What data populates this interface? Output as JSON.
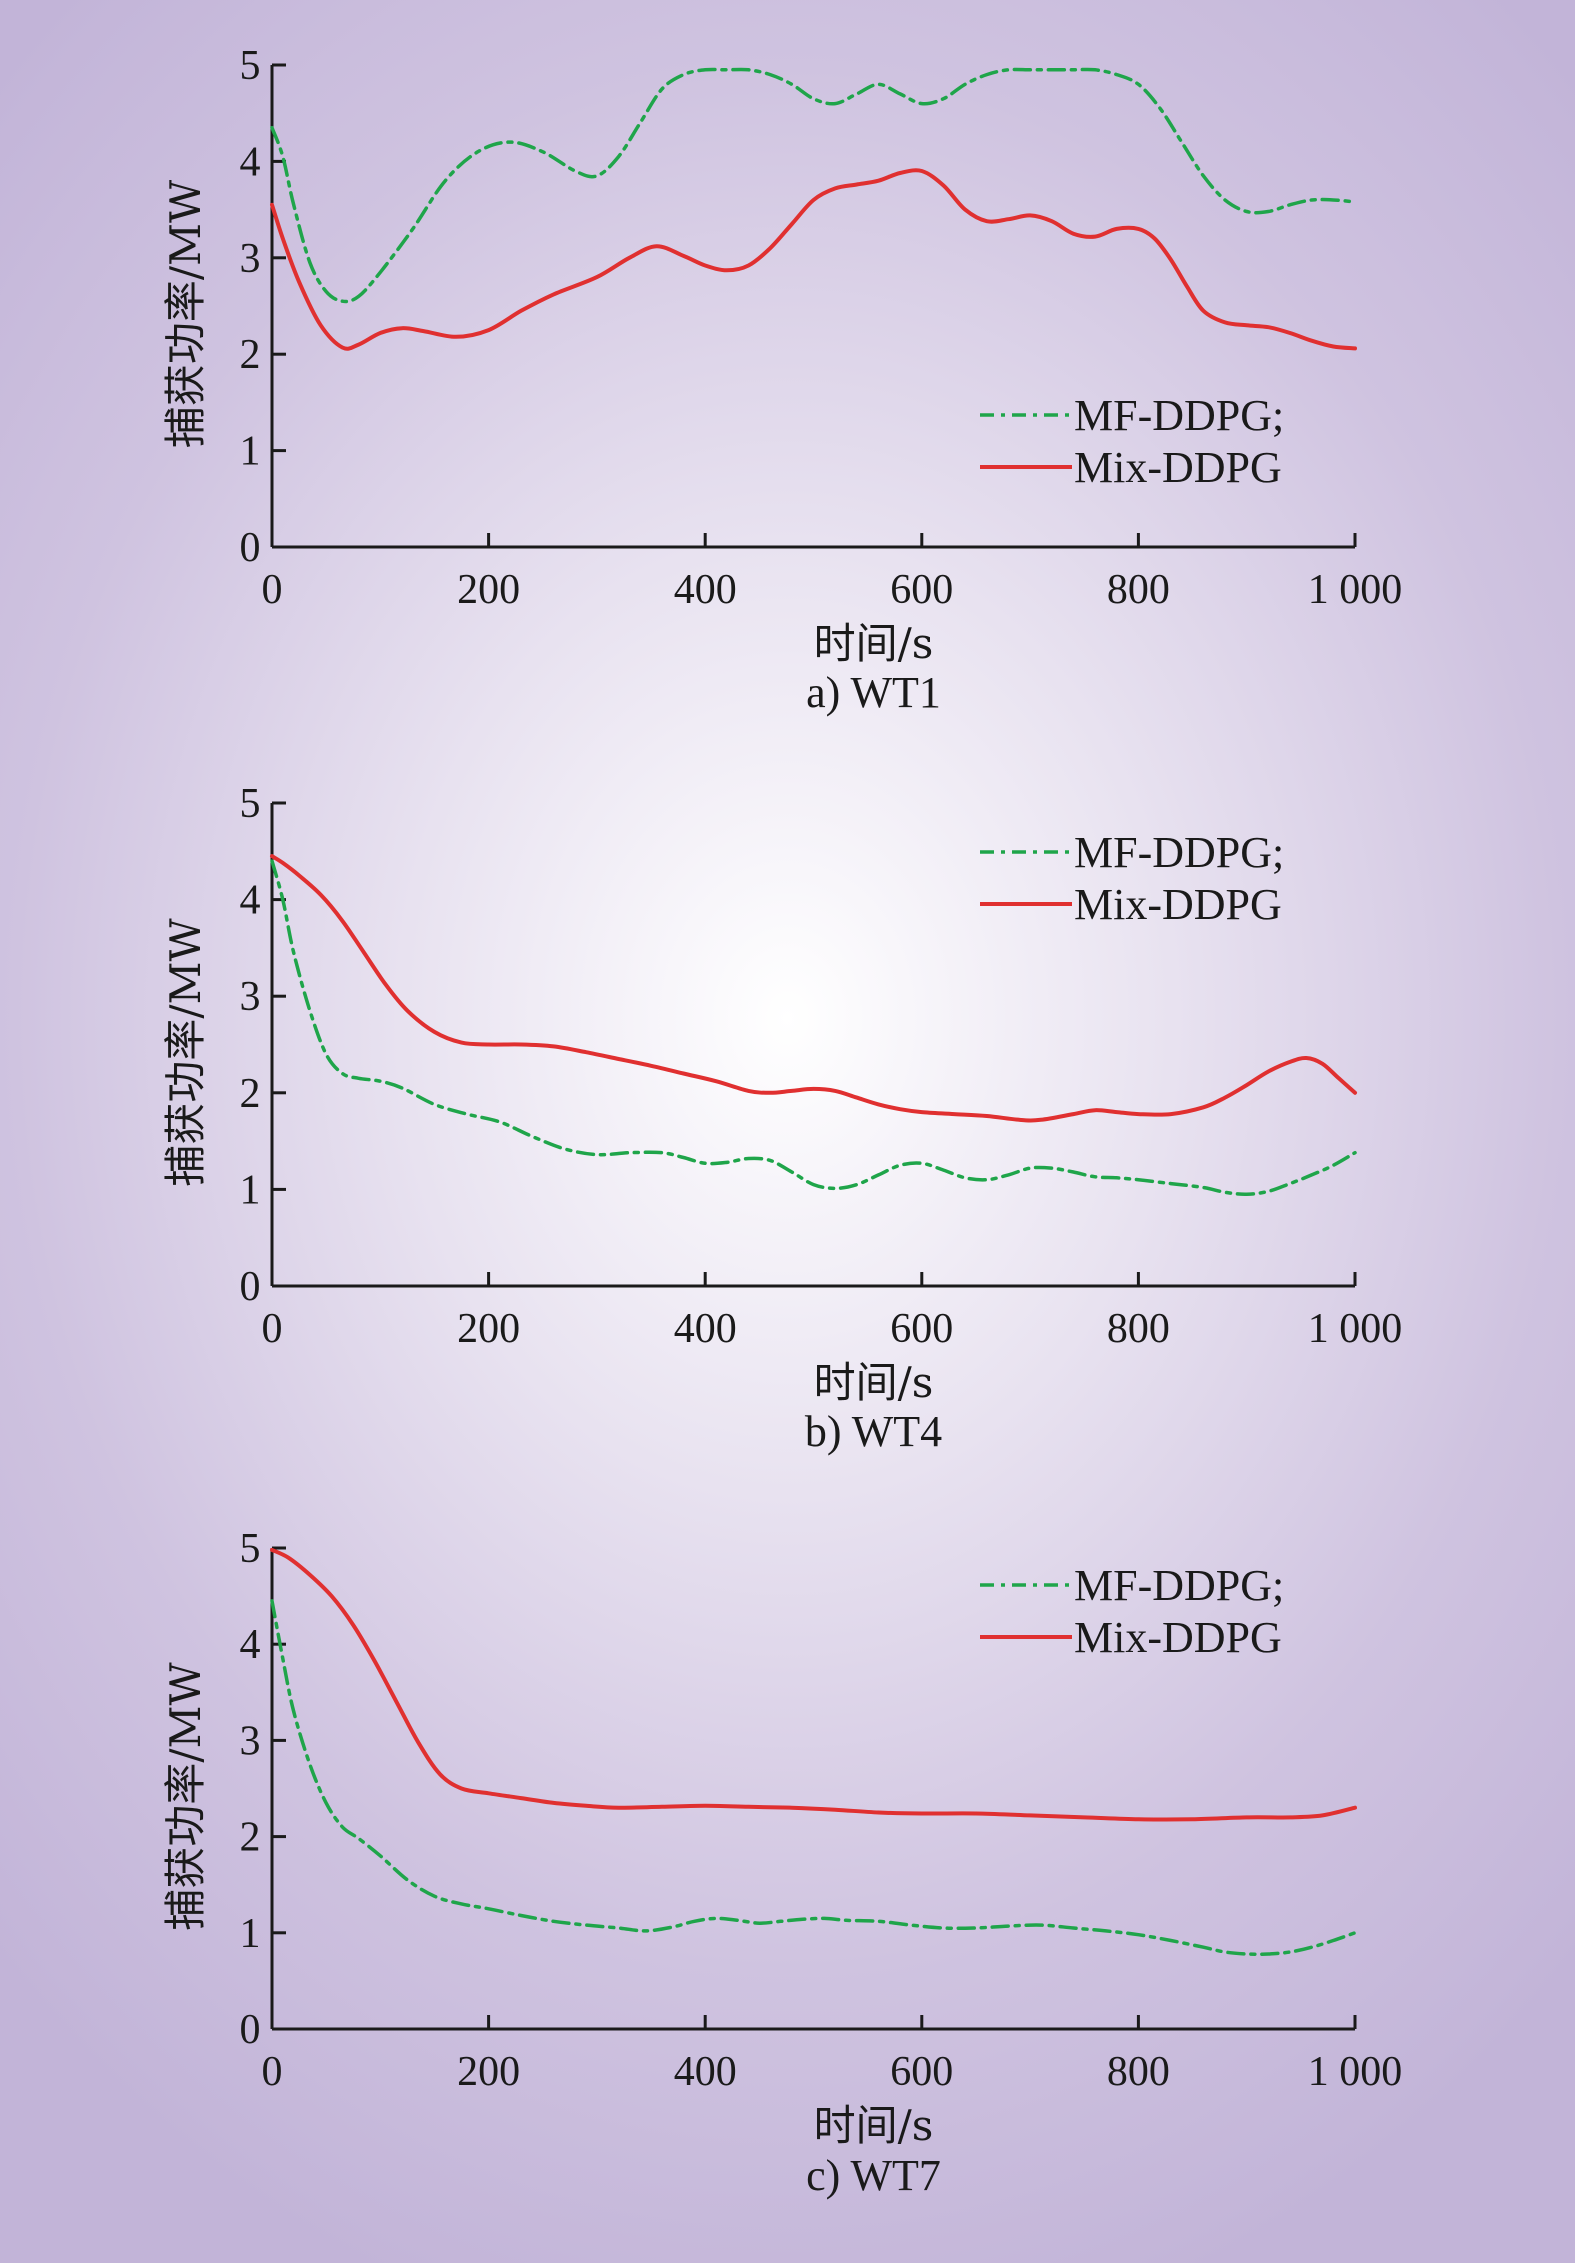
{
  "chart_data": [
    {
      "type": "line",
      "caption": "a) WT1",
      "xlabel": "时间/s",
      "ylabel": "捕获功率/MW",
      "xlim": [
        0,
        1000
      ],
      "ylim": [
        0,
        5
      ],
      "xticks": [
        0,
        200,
        400,
        600,
        800,
        1000
      ],
      "xtick_labels": [
        "0",
        "200",
        "400",
        "600",
        "800",
        "1 000"
      ],
      "yticks": [
        0,
        1,
        2,
        3,
        4,
        5
      ],
      "ytick_labels": [
        "0",
        "1",
        "2",
        "3",
        "4",
        "5"
      ],
      "legend_position": "right-middle",
      "series": [
        {
          "name": "MF-DDPG;",
          "color": "#1fa54a",
          "dash": "dashdot",
          "x": [
            0,
            10,
            20,
            35,
            50,
            65,
            80,
            100,
            130,
            160,
            190,
            220,
            250,
            280,
            300,
            320,
            340,
            360,
            380,
            400,
            420,
            440,
            460,
            480,
            500,
            520,
            540,
            560,
            580,
            600,
            620,
            640,
            660,
            680,
            700,
            720,
            740,
            760,
            780,
            800,
            820,
            840,
            860,
            880,
            900,
            920,
            940,
            960,
            980,
            1000
          ],
          "y": [
            4.35,
            4.05,
            3.55,
            2.95,
            2.65,
            2.55,
            2.6,
            2.85,
            3.3,
            3.8,
            4.1,
            4.2,
            4.1,
            3.9,
            3.85,
            4.05,
            4.4,
            4.75,
            4.9,
            4.95,
            4.95,
            4.95,
            4.9,
            4.8,
            4.65,
            4.6,
            4.7,
            4.8,
            4.7,
            4.6,
            4.65,
            4.8,
            4.9,
            4.95,
            4.95,
            4.95,
            4.95,
            4.95,
            4.9,
            4.8,
            4.55,
            4.2,
            3.85,
            3.6,
            3.48,
            3.48,
            3.55,
            3.6,
            3.6,
            3.58
          ]
        },
        {
          "name": "Mix-DDPG",
          "color": "#e03030",
          "dash": "solid",
          "x": [
            0,
            10,
            25,
            45,
            65,
            80,
            100,
            120,
            140,
            170,
            200,
            230,
            260,
            300,
            330,
            355,
            380,
            400,
            420,
            440,
            460,
            480,
            500,
            520,
            540,
            560,
            580,
            600,
            620,
            640,
            660,
            680,
            700,
            720,
            740,
            760,
            780,
            800,
            815,
            830,
            845,
            860,
            880,
            900,
            920,
            940,
            960,
            980,
            1000
          ],
          "y": [
            3.55,
            3.2,
            2.75,
            2.3,
            2.07,
            2.1,
            2.22,
            2.27,
            2.24,
            2.18,
            2.25,
            2.45,
            2.62,
            2.8,
            3.0,
            3.12,
            3.02,
            2.92,
            2.87,
            2.92,
            3.1,
            3.35,
            3.6,
            3.72,
            3.76,
            3.8,
            3.88,
            3.9,
            3.75,
            3.5,
            3.38,
            3.4,
            3.44,
            3.38,
            3.25,
            3.22,
            3.3,
            3.3,
            3.2,
            2.98,
            2.7,
            2.45,
            2.33,
            2.3,
            2.28,
            2.22,
            2.14,
            2.08,
            2.06
          ]
        }
      ]
    },
    {
      "type": "line",
      "caption": "b) WT4",
      "xlabel": "时间/s",
      "ylabel": "捕获功率/MW",
      "xlim": [
        0,
        1000
      ],
      "ylim": [
        0,
        5
      ],
      "xticks": [
        0,
        200,
        400,
        600,
        800,
        1000
      ],
      "xtick_labels": [
        "0",
        "200",
        "400",
        "600",
        "800",
        "1 000"
      ],
      "yticks": [
        0,
        1,
        2,
        3,
        4,
        5
      ],
      "ytick_labels": [
        "0",
        "1",
        "2",
        "3",
        "4",
        "5"
      ],
      "legend_position": "top-right",
      "series": [
        {
          "name": "MF-DDPG;",
          "color": "#1fa54a",
          "dash": "dashdot",
          "x": [
            0,
            10,
            20,
            35,
            50,
            65,
            80,
            100,
            120,
            150,
            180,
            210,
            240,
            270,
            300,
            330,
            360,
            380,
            400,
            420,
            440,
            460,
            480,
            500,
            520,
            540,
            560,
            580,
            600,
            620,
            640,
            660,
            680,
            700,
            720,
            740,
            760,
            780,
            800,
            830,
            860,
            880,
            900,
            920,
            940,
            960,
            980,
            1000
          ],
          "y": [
            4.4,
            4.0,
            3.45,
            2.85,
            2.4,
            2.2,
            2.15,
            2.12,
            2.05,
            1.88,
            1.78,
            1.7,
            1.55,
            1.42,
            1.36,
            1.38,
            1.38,
            1.33,
            1.27,
            1.28,
            1.32,
            1.3,
            1.18,
            1.05,
            1.01,
            1.05,
            1.15,
            1.25,
            1.27,
            1.2,
            1.12,
            1.1,
            1.15,
            1.22,
            1.22,
            1.18,
            1.13,
            1.12,
            1.1,
            1.06,
            1.02,
            0.97,
            0.95,
            0.98,
            1.06,
            1.15,
            1.25,
            1.38
          ]
        },
        {
          "name": "Mix-DDPG",
          "color": "#e03030",
          "dash": "solid",
          "x": [
            0,
            10,
            25,
            45,
            65,
            85,
            105,
            125,
            150,
            175,
            200,
            230,
            260,
            290,
            320,
            350,
            380,
            410,
            440,
            460,
            480,
            500,
            520,
            540,
            560,
            580,
            600,
            630,
            660,
            690,
            710,
            740,
            760,
            780,
            800,
            830,
            860,
            880,
            900,
            920,
            940,
            955,
            970,
            985,
            1000
          ],
          "y": [
            4.45,
            4.38,
            4.25,
            4.05,
            3.78,
            3.45,
            3.12,
            2.85,
            2.63,
            2.52,
            2.5,
            2.5,
            2.48,
            2.42,
            2.35,
            2.28,
            2.2,
            2.12,
            2.02,
            2.0,
            2.02,
            2.04,
            2.02,
            1.95,
            1.88,
            1.83,
            1.8,
            1.78,
            1.76,
            1.72,
            1.72,
            1.78,
            1.82,
            1.8,
            1.78,
            1.78,
            1.85,
            1.95,
            2.08,
            2.22,
            2.32,
            2.36,
            2.3,
            2.15,
            2.0
          ]
        }
      ]
    },
    {
      "type": "line",
      "caption": "c) WT7",
      "xlabel": "时间/s",
      "ylabel": "捕获功率/MW",
      "xlim": [
        0,
        1000
      ],
      "ylim": [
        0,
        5
      ],
      "xticks": [
        0,
        200,
        400,
        600,
        800,
        1000
      ],
      "xtick_labels": [
        "0",
        "200",
        "400",
        "600",
        "800",
        "1 000"
      ],
      "yticks": [
        0,
        1,
        2,
        3,
        4,
        5
      ],
      "ytick_labels": [
        "0",
        "1",
        "2",
        "3",
        "4",
        "5"
      ],
      "legend_position": "top-right",
      "series": [
        {
          "name": "MF-DDPG;",
          "color": "#1fa54a",
          "dash": "dashdot",
          "x": [
            0,
            10,
            20,
            35,
            50,
            65,
            80,
            100,
            125,
            150,
            175,
            200,
            230,
            260,
            290,
            320,
            345,
            370,
            390,
            410,
            430,
            450,
            470,
            490,
            510,
            530,
            560,
            590,
            620,
            650,
            680,
            710,
            740,
            770,
            800,
            830,
            860,
            880,
            900,
            920,
            940,
            960,
            980,
            1000
          ],
          "y": [
            4.45,
            3.85,
            3.3,
            2.75,
            2.35,
            2.1,
            1.98,
            1.8,
            1.55,
            1.38,
            1.3,
            1.25,
            1.18,
            1.12,
            1.08,
            1.05,
            1.02,
            1.06,
            1.12,
            1.15,
            1.13,
            1.1,
            1.12,
            1.14,
            1.15,
            1.13,
            1.12,
            1.08,
            1.05,
            1.05,
            1.07,
            1.08,
            1.05,
            1.02,
            0.98,
            0.92,
            0.85,
            0.8,
            0.78,
            0.78,
            0.8,
            0.85,
            0.92,
            1.0
          ]
        },
        {
          "name": "Mix-DDPG",
          "color": "#e03030",
          "dash": "solid",
          "x": [
            0,
            15,
            35,
            55,
            75,
            95,
            115,
            135,
            155,
            175,
            200,
            230,
            260,
            290,
            320,
            360,
            400,
            440,
            480,
            520,
            560,
            600,
            650,
            700,
            750,
            800,
            850,
            900,
            940,
            970,
            1000
          ],
          "y": [
            4.98,
            4.9,
            4.72,
            4.5,
            4.2,
            3.82,
            3.4,
            2.98,
            2.65,
            2.5,
            2.45,
            2.4,
            2.35,
            2.32,
            2.3,
            2.31,
            2.32,
            2.31,
            2.3,
            2.28,
            2.25,
            2.24,
            2.24,
            2.22,
            2.2,
            2.18,
            2.18,
            2.2,
            2.2,
            2.22,
            2.3
          ]
        }
      ]
    }
  ]
}
